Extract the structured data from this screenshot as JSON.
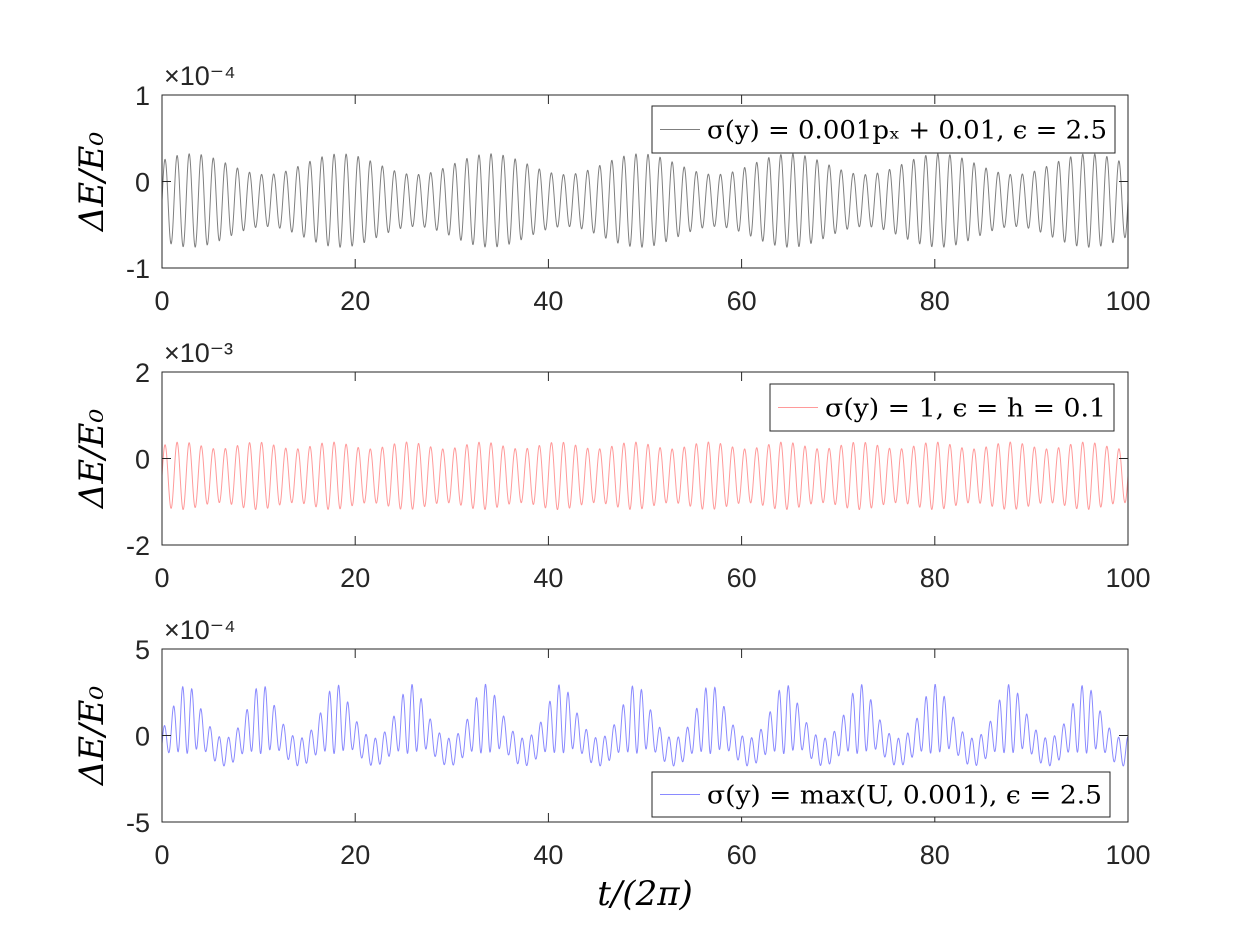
{
  "chart_data": [
    {
      "type": "line",
      "ylabel": "ΔE/E₀",
      "xlabel": "",
      "xlim": [
        0,
        100
      ],
      "ylim": [
        -1,
        1
      ],
      "y_exponent": "×10⁻⁴",
      "x_ticks": [
        "0",
        "20",
        "40",
        "60",
        "80",
        "100"
      ],
      "y_ticks": [
        "1",
        "0",
        "-1"
      ],
      "legend_position": "top-right",
      "series": [
        {
          "name": "σ(y) = 0.001pₓ + 0.01, ϵ = 2.5",
          "color": "#7f7f7f",
          "description_values": {
            "oscillations_per_period": 8,
            "beat_period": 15.5,
            "mean": -0.2,
            "min": -0.8,
            "max": 0.28
          }
        }
      ]
    },
    {
      "type": "line",
      "ylabel": "ΔE/E₀",
      "xlabel": "",
      "xlim": [
        0,
        100
      ],
      "ylim": [
        -2,
        2
      ],
      "y_exponent": "×10⁻³",
      "x_ticks": [
        "0",
        "20",
        "40",
        "60",
        "80",
        "100"
      ],
      "y_ticks": [
        "2",
        "0",
        "-2"
      ],
      "legend_position": "top-right",
      "series": [
        {
          "name": "σ(y) = 1, ϵ = h = 0.1",
          "color": "#ff9a9a",
          "description_values": {
            "oscillations_per_period": 8,
            "beat_period": 7.8,
            "mean": -0.4,
            "min": -1.15,
            "max": 0.38
          }
        }
      ]
    },
    {
      "type": "line",
      "ylabel": "ΔE/E₀",
      "xlabel": "t/(2π)",
      "xlim": [
        0,
        100
      ],
      "ylim": [
        -5,
        5
      ],
      "y_exponent": "×10⁻⁴",
      "x_ticks": [
        "0",
        "20",
        "40",
        "60",
        "80",
        "100"
      ],
      "y_ticks": [
        "5",
        "0",
        "-5"
      ],
      "legend_position": "bottom-right",
      "series": [
        {
          "name": "σ(y) = max(U, 0.001), ϵ = 2.5",
          "color": "#8a8aff",
          "description_values": {
            "fast_period": 0.95,
            "beat_period": 7.75,
            "mean": 0.3,
            "min": -1.9,
            "max": 3.4
          }
        }
      ]
    }
  ]
}
